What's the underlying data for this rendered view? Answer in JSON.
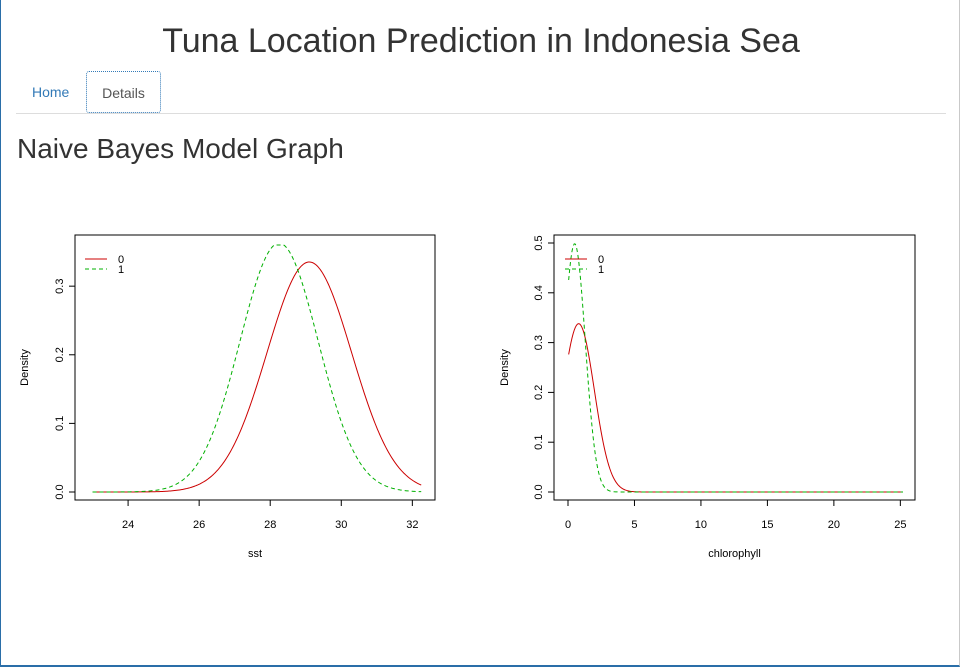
{
  "header": {
    "title": "Tuna Location Prediction in Indonesia Sea"
  },
  "tabs": [
    {
      "label": "Home",
      "active": false
    },
    {
      "label": "Details",
      "active": true
    }
  ],
  "main": {
    "section_title": "Naive Bayes Model Graph"
  },
  "colors": {
    "class0": "#cc0000",
    "class1": "#00b000",
    "link": "#337ab7"
  },
  "chart_data": [
    {
      "type": "line",
      "xlabel": "sst",
      "ylabel": "Density",
      "xlim": [
        22.9,
        32.3
      ],
      "ylim": [
        0,
        0.36
      ],
      "xticks": [
        24,
        26,
        28,
        30,
        32
      ],
      "yticks": [
        0.0,
        0.1,
        0.2,
        0.3
      ],
      "legend": {
        "position": "top-left",
        "entries": [
          "0",
          "1"
        ]
      },
      "series": [
        {
          "name": "0",
          "style": "solid",
          "distribution": "normal",
          "mean": 29.1,
          "sd": 1.19,
          "x_start": 23.0,
          "x_end": 32.25
        },
        {
          "name": "1",
          "style": "dashed",
          "distribution": "normal",
          "mean": 28.25,
          "sd": 1.1,
          "x_start": 23.0,
          "x_end": 32.25
        }
      ]
    },
    {
      "type": "line",
      "xlabel": "chlorophyll",
      "ylabel": "Density",
      "xlim": [
        0,
        25.2
      ],
      "ylim": [
        0,
        0.5
      ],
      "xticks": [
        0,
        5,
        10,
        15,
        20,
        25
      ],
      "yticks": [
        0.0,
        0.1,
        0.2,
        0.3,
        0.4,
        0.5
      ],
      "legend": {
        "position": "top-left",
        "entries": [
          "0",
          "1"
        ]
      },
      "series": [
        {
          "name": "0",
          "style": "solid",
          "distribution": "normal",
          "mean": 0.8,
          "sd": 1.18,
          "x_start": 0.05,
          "x_end": 25.2
        },
        {
          "name": "1",
          "style": "dashed",
          "distribution": "normal",
          "mean": 0.5,
          "sd": 0.8,
          "x_start": 0.05,
          "x_end": 25.2
        }
      ]
    }
  ]
}
